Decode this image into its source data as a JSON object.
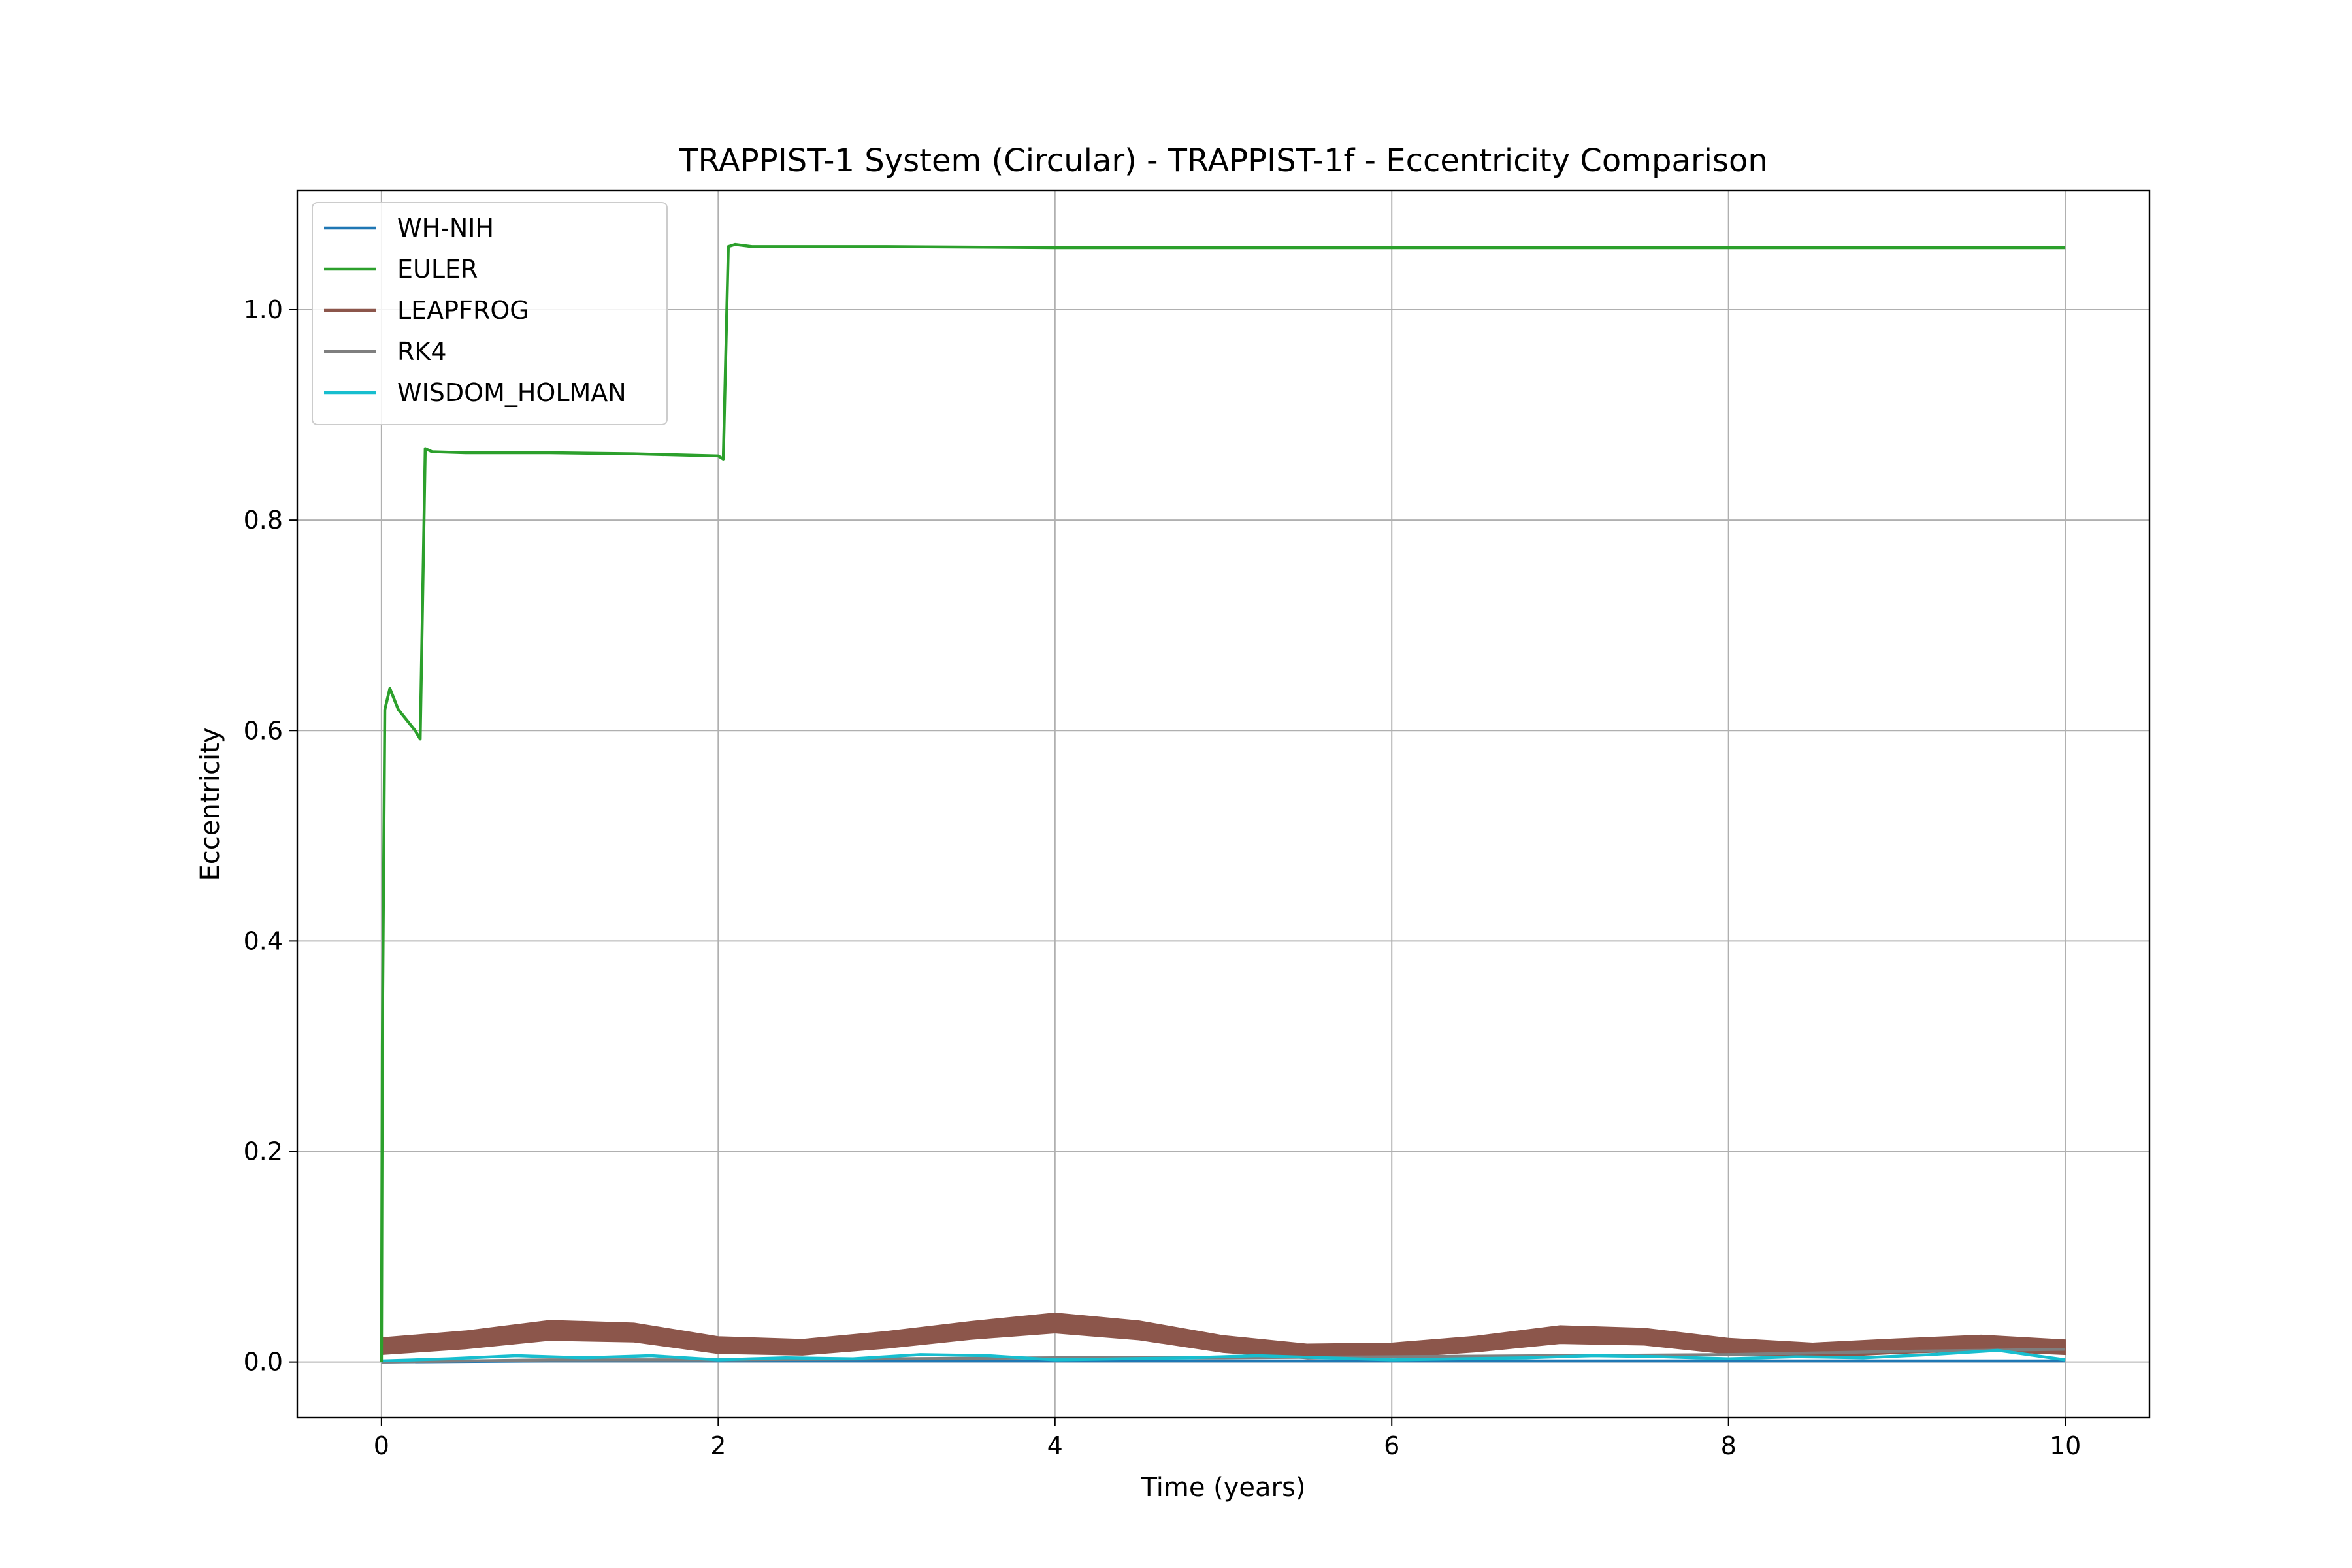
{
  "chart_data": {
    "type": "line",
    "title": "TRAPPIST-1 System (Circular) - TRAPPIST-1f - Eccentricity Comparison",
    "xlabel": "Time (years)",
    "ylabel": "Eccentricity",
    "xlim": [
      -0.5,
      10.5
    ],
    "ylim": [
      -0.053,
      1.113
    ],
    "xticks": [
      0,
      2,
      4,
      6,
      8,
      10
    ],
    "yticks": [
      0.0,
      0.2,
      0.4,
      0.6,
      0.8,
      1.0
    ],
    "xtick_labels": [
      "0",
      "2",
      "4",
      "6",
      "8",
      "10"
    ],
    "ytick_labels": [
      "0.0",
      "0.2",
      "0.4",
      "0.6",
      "0.8",
      "1.0"
    ],
    "grid": true,
    "legend_position": "top-left",
    "series": [
      {
        "name": "WH-NIH",
        "color": "#1f77b4",
        "x": [
          0,
          1,
          2,
          3,
          4,
          5,
          6,
          7,
          8,
          9,
          10
        ],
        "y": [
          0.0,
          0.001,
          0.001,
          0.001,
          0.001,
          0.001,
          0.001,
          0.001,
          0.001,
          0.001,
          0.001
        ]
      },
      {
        "name": "EULER",
        "color": "#2ca02c",
        "x": [
          0,
          0.005,
          0.02,
          0.05,
          0.1,
          0.15,
          0.2,
          0.23,
          0.26,
          0.3,
          0.5,
          1.0,
          1.5,
          2.0,
          2.03,
          2.06,
          2.1,
          2.2,
          3,
          4,
          5,
          6,
          7,
          8,
          9,
          10
        ],
        "y": [
          0.0,
          0.3,
          0.62,
          0.64,
          0.62,
          0.61,
          0.6,
          0.592,
          0.868,
          0.865,
          0.864,
          0.864,
          0.863,
          0.861,
          0.858,
          1.06,
          1.062,
          1.06,
          1.06,
          1.059,
          1.059,
          1.059,
          1.059,
          1.059,
          1.059,
          1.059
        ]
      },
      {
        "name": "LEAPFROG",
        "color": "#8c564b",
        "x": [
          0,
          0.5,
          1.0,
          1.5,
          2.0,
          2.5,
          3.0,
          3.5,
          4.0,
          4.5,
          5.0,
          5.5,
          6.0,
          6.5,
          7.0,
          7.5,
          8.0,
          8.5,
          9.0,
          9.5,
          10.0
        ],
        "y": [
          0.015,
          0.021,
          0.03,
          0.028,
          0.016,
          0.014,
          0.021,
          0.03,
          0.037,
          0.03,
          0.017,
          0.01,
          0.011,
          0.017,
          0.026,
          0.024,
          0.015,
          0.011,
          0.015,
          0.018,
          0.014
        ],
        "band": [
          0.015,
          0.016,
          0.018,
          0.017,
          0.015,
          0.014,
          0.015,
          0.016,
          0.018,
          0.017,
          0.015,
          0.013,
          0.013,
          0.014,
          0.016,
          0.015,
          0.014,
          0.013,
          0.013,
          0.014,
          0.013
        ]
      },
      {
        "name": "RK4",
        "color": "#7f7f7f",
        "x": [
          0,
          1,
          2,
          3,
          4,
          5,
          6,
          7,
          8,
          9,
          10
        ],
        "y": [
          0.0,
          0.002,
          0.002,
          0.003,
          0.004,
          0.004,
          0.005,
          0.006,
          0.007,
          0.01,
          0.012
        ]
      },
      {
        "name": "WISDOM_HOLMAN",
        "color": "#17becf",
        "x": [
          0,
          0.4,
          0.8,
          1.2,
          1.6,
          2.0,
          2.4,
          2.8,
          3.2,
          3.6,
          4.0,
          4.4,
          4.8,
          5.2,
          5.6,
          6.0,
          6.4,
          6.8,
          7.2,
          7.6,
          8.0,
          8.4,
          8.8,
          9.2,
          9.6,
          10.0
        ],
        "y": [
          0.001,
          0.003,
          0.006,
          0.004,
          0.006,
          0.002,
          0.004,
          0.003,
          0.007,
          0.006,
          0.002,
          0.003,
          0.004,
          0.006,
          0.004,
          0.002,
          0.003,
          0.004,
          0.006,
          0.005,
          0.003,
          0.005,
          0.004,
          0.007,
          0.011,
          0.002
        ]
      }
    ]
  }
}
